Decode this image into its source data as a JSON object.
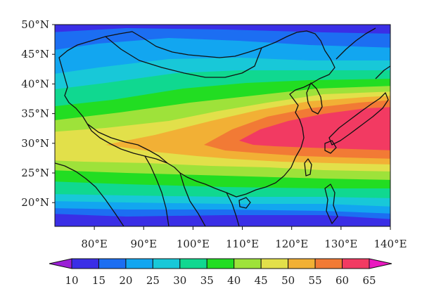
{
  "map": {
    "lat_labels": [
      {
        "lat": 50,
        "text": "50°N"
      },
      {
        "lat": 45,
        "text": "45°N"
      },
      {
        "lat": 40,
        "text": "40°N"
      },
      {
        "lat": 35,
        "text": "35°N"
      },
      {
        "lat": 30,
        "text": "30°N"
      },
      {
        "lat": 25,
        "text": "25°N"
      },
      {
        "lat": 20,
        "text": "20°N"
      }
    ],
    "lon_labels": [
      {
        "lon": 80,
        "text": "80°E"
      },
      {
        "lon": 90,
        "text": "90°E"
      },
      {
        "lon": 100,
        "text": "100°E"
      },
      {
        "lon": 110,
        "text": "110°E"
      },
      {
        "lon": 120,
        "text": "120°E"
      },
      {
        "lon": 130,
        "text": "130°E"
      },
      {
        "lon": 140,
        "text": "140°E"
      }
    ],
    "extent": {
      "lon_min": 72,
      "lon_max": 140,
      "lat_min": 16,
      "lat_max": 50
    }
  },
  "colorbar": {
    "levels": [
      "10",
      "15",
      "20",
      "25",
      "30",
      "35",
      "40",
      "45",
      "50",
      "55",
      "60",
      "65"
    ],
    "colors": [
      "#9a1fd6",
      "#3a2ee6",
      "#1c6ef2",
      "#12a6f0",
      "#18c8d8",
      "#10d890",
      "#22dd22",
      "#9ee23a",
      "#e2e04a",
      "#f2b035",
      "#f27a35",
      "#f23a62",
      "#ea18c0"
    ]
  }
}
